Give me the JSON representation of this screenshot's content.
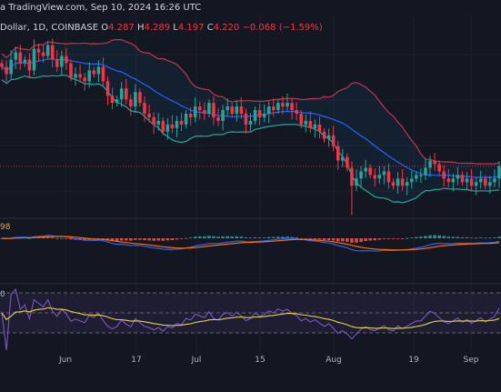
{
  "watermark": "a TradingView.com, Sep 10, 2024 16:26 UTC",
  "symbol_header": {
    "pair": "Dollar, 1D, COINBASE",
    "open_label": "O",
    "open": "4.287",
    "high_label": "H",
    "high": "4.289",
    "low_label": "L",
    "low": "4.197",
    "close_label": "C",
    "close": "4.220",
    "change": "−0.068 (−1.59%)"
  },
  "macd_value": "98",
  "rsi_value": "0",
  "x_axis_labels": [
    "Jun",
    "17",
    "Jul",
    "15",
    "Aug",
    "19",
    "Sep"
  ],
  "colors": {
    "background": "#131722",
    "up_candle": "#26a69a",
    "down_candle": "#f23645",
    "bb_upper": "#c2364a",
    "bb_basis": "#2962ff",
    "bb_lower": "#26a69a",
    "macd_line": "#2962ff",
    "signal_line": "#ff6d00",
    "rsi_line": "#7e57c2",
    "rsi_ma": "#e6d34a"
  },
  "chart_data": {
    "type": "candlestick",
    "closes": [
      5.6,
      5.5,
      5.7,
      5.8,
      5.65,
      5.7,
      5.55,
      5.85,
      5.8,
      5.75,
      5.9,
      5.7,
      5.6,
      5.75,
      5.65,
      5.45,
      5.5,
      5.45,
      5.4,
      5.55,
      5.5,
      5.6,
      5.4,
      5.2,
      5.1,
      5.15,
      5.3,
      5.15,
      5.05,
      5.25,
      5.1,
      4.95,
      4.9,
      4.8,
      4.85,
      4.7,
      4.8,
      4.75,
      4.85,
      4.8,
      4.95,
      4.9,
      5.05,
      5.0,
      4.95,
      5.1,
      4.9,
      4.85,
      5.0,
      5.05,
      4.95,
      5.05,
      4.95,
      4.8,
      4.85,
      5.0,
      4.9,
      4.95,
      5.05,
      5.0,
      5.1,
      5.05,
      5.1,
      5.0,
      4.95,
      4.8,
      4.85,
      4.75,
      4.8,
      4.7,
      4.6,
      4.65,
      4.5,
      4.3,
      4.35,
      4.2,
      3.95,
      4.05,
      4.15,
      4.2,
      4.1,
      4.05,
      4.1,
      4.15,
      4.0,
      3.95,
      4.05,
      3.95,
      4.0,
      4.05,
      4.1,
      4.1,
      4.2,
      4.3,
      4.25,
      4.15,
      4.05,
      4.0,
      4.05,
      4.1,
      4.0,
      4.05,
      3.95,
      4.0,
      4.05,
      3.95,
      4.0,
      4.05,
      4.22
    ],
    "last_close": 4.22
  }
}
